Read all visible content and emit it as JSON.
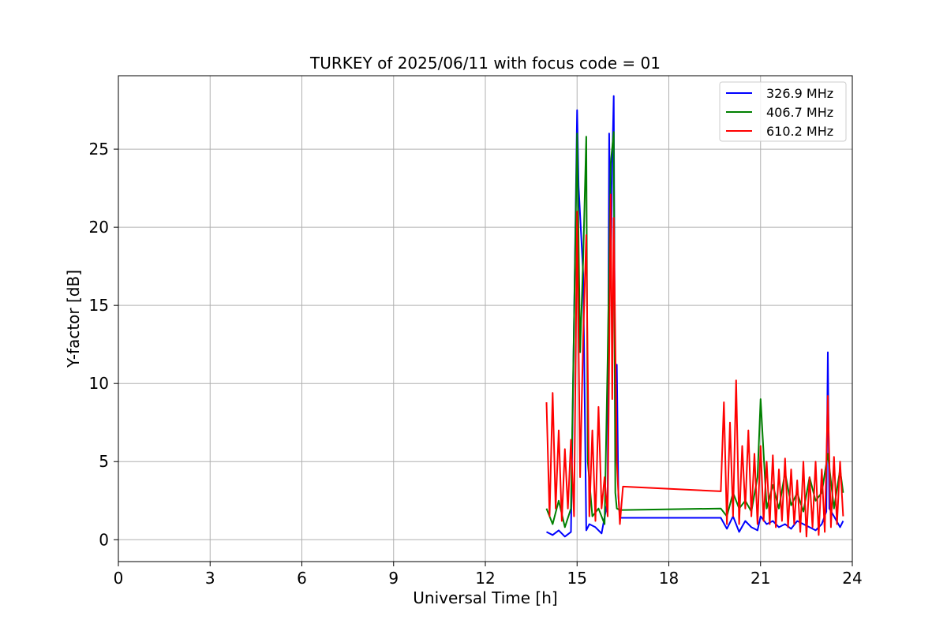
{
  "chart_data": {
    "type": "line",
    "title": "TURKEY of 2025/06/11 with focus code = 01",
    "xlabel": "Universal Time [h]",
    "ylabel": "Y-factor [dB]",
    "xlim": [
      0,
      24
    ],
    "ylim": [
      -1.4,
      29.7
    ],
    "xticks": [
      0,
      3,
      6,
      9,
      12,
      15,
      18,
      21,
      24
    ],
    "yticks": [
      0,
      5,
      10,
      15,
      20,
      25
    ],
    "grid": true,
    "legend_position": "top-right",
    "series": [
      {
        "name": "326.9 MHz",
        "color": "#0000ff",
        "x": [
          14.0,
          14.2,
          14.4,
          14.6,
          14.8,
          15.0,
          15.05,
          15.2,
          15.3,
          15.4,
          15.6,
          15.8,
          16.0,
          16.05,
          16.1,
          16.15,
          16.2,
          16.25,
          16.3,
          16.35,
          16.4,
          16.5,
          19.7,
          19.9,
          20.1,
          20.3,
          20.5,
          20.7,
          20.9,
          21.0,
          21.2,
          21.4,
          21.6,
          21.8,
          22.0,
          22.2,
          22.4,
          22.6,
          22.8,
          23.0,
          23.15,
          23.2,
          23.25,
          23.4,
          23.6,
          23.7
        ],
        "y": [
          0.5,
          0.3,
          0.6,
          0.2,
          0.5,
          27.5,
          22.6,
          17.0,
          0.6,
          1.0,
          0.8,
          0.4,
          2.5,
          26.0,
          16.8,
          24.0,
          28.4,
          5.0,
          11.2,
          2.8,
          1.4,
          1.4,
          1.4,
          0.7,
          1.5,
          0.5,
          1.2,
          0.8,
          0.6,
          1.5,
          1.0,
          1.2,
          0.8,
          1.0,
          0.7,
          1.2,
          1.0,
          0.8,
          0.6,
          1.0,
          1.8,
          12.0,
          2.0,
          1.5,
          0.8,
          1.2
        ]
      },
      {
        "name": "406.7 MHz",
        "color": "#008000",
        "x": [
          14.0,
          14.2,
          14.4,
          14.6,
          14.8,
          15.0,
          15.1,
          15.2,
          15.3,
          15.35,
          15.5,
          15.7,
          15.9,
          16.0,
          16.1,
          16.2,
          16.25,
          16.3,
          16.4,
          16.5,
          19.7,
          19.9,
          20.1,
          20.3,
          20.5,
          20.7,
          20.9,
          21.0,
          21.2,
          21.4,
          21.6,
          21.8,
          22.0,
          22.2,
          22.4,
          22.6,
          22.8,
          23.0,
          23.2,
          23.4,
          23.6,
          23.7
        ],
        "y": [
          2.0,
          1.0,
          2.5,
          0.8,
          2.0,
          26.0,
          12.0,
          18.0,
          25.8,
          5.0,
          1.5,
          2.0,
          1.0,
          11.6,
          24.1,
          26.1,
          3.0,
          2.0,
          1.9,
          1.9,
          2.0,
          1.5,
          3.0,
          2.0,
          2.5,
          1.8,
          4.0,
          9.0,
          2.0,
          3.5,
          2.0,
          4.3,
          2.2,
          3.0,
          1.8,
          4.0,
          2.5,
          3.0,
          5.5,
          2.0,
          4.5,
          3.0
        ]
      },
      {
        "name": "610.2 MHz",
        "color": "#ff0000",
        "x": [
          14.0,
          14.1,
          14.2,
          14.3,
          14.4,
          14.5,
          14.6,
          14.7,
          14.8,
          14.9,
          15.0,
          15.1,
          15.2,
          15.3,
          15.4,
          15.5,
          15.6,
          15.7,
          15.8,
          15.9,
          16.0,
          16.1,
          16.15,
          16.2,
          16.3,
          16.4,
          16.5,
          19.7,
          19.8,
          19.9,
          20.0,
          20.1,
          20.2,
          20.3,
          20.4,
          20.5,
          20.6,
          20.7,
          20.8,
          20.9,
          21.0,
          21.1,
          21.2,
          21.3,
          21.4,
          21.5,
          21.6,
          21.7,
          21.8,
          21.9,
          22.0,
          22.1,
          22.2,
          22.3,
          22.4,
          22.5,
          22.6,
          22.7,
          22.8,
          22.9,
          23.0,
          23.1,
          23.2,
          23.3,
          23.4,
          23.5,
          23.6,
          23.7
        ],
        "y": [
          8.8,
          1.5,
          9.4,
          2.0,
          7.0,
          1.2,
          5.8,
          2.0,
          6.4,
          1.5,
          21.0,
          4.0,
          13.0,
          19.5,
          1.5,
          7.0,
          1.2,
          8.5,
          2.0,
          4.0,
          1.5,
          22.1,
          9.0,
          20.6,
          5.0,
          1.0,
          3.4,
          3.1,
          8.8,
          1.0,
          7.5,
          1.5,
          10.2,
          1.0,
          6.0,
          2.0,
          7.0,
          1.5,
          5.5,
          1.0,
          6.0,
          1.2,
          5.0,
          1.0,
          5.4,
          0.8,
          4.5,
          1.2,
          5.2,
          0.8,
          4.5,
          1.0,
          3.8,
          0.5,
          5.0,
          0.2,
          4.0,
          0.8,
          5.0,
          0.3,
          4.5,
          0.5,
          9.2,
          0.8,
          5.3,
          1.0,
          5.0,
          1.5
        ]
      }
    ]
  }
}
